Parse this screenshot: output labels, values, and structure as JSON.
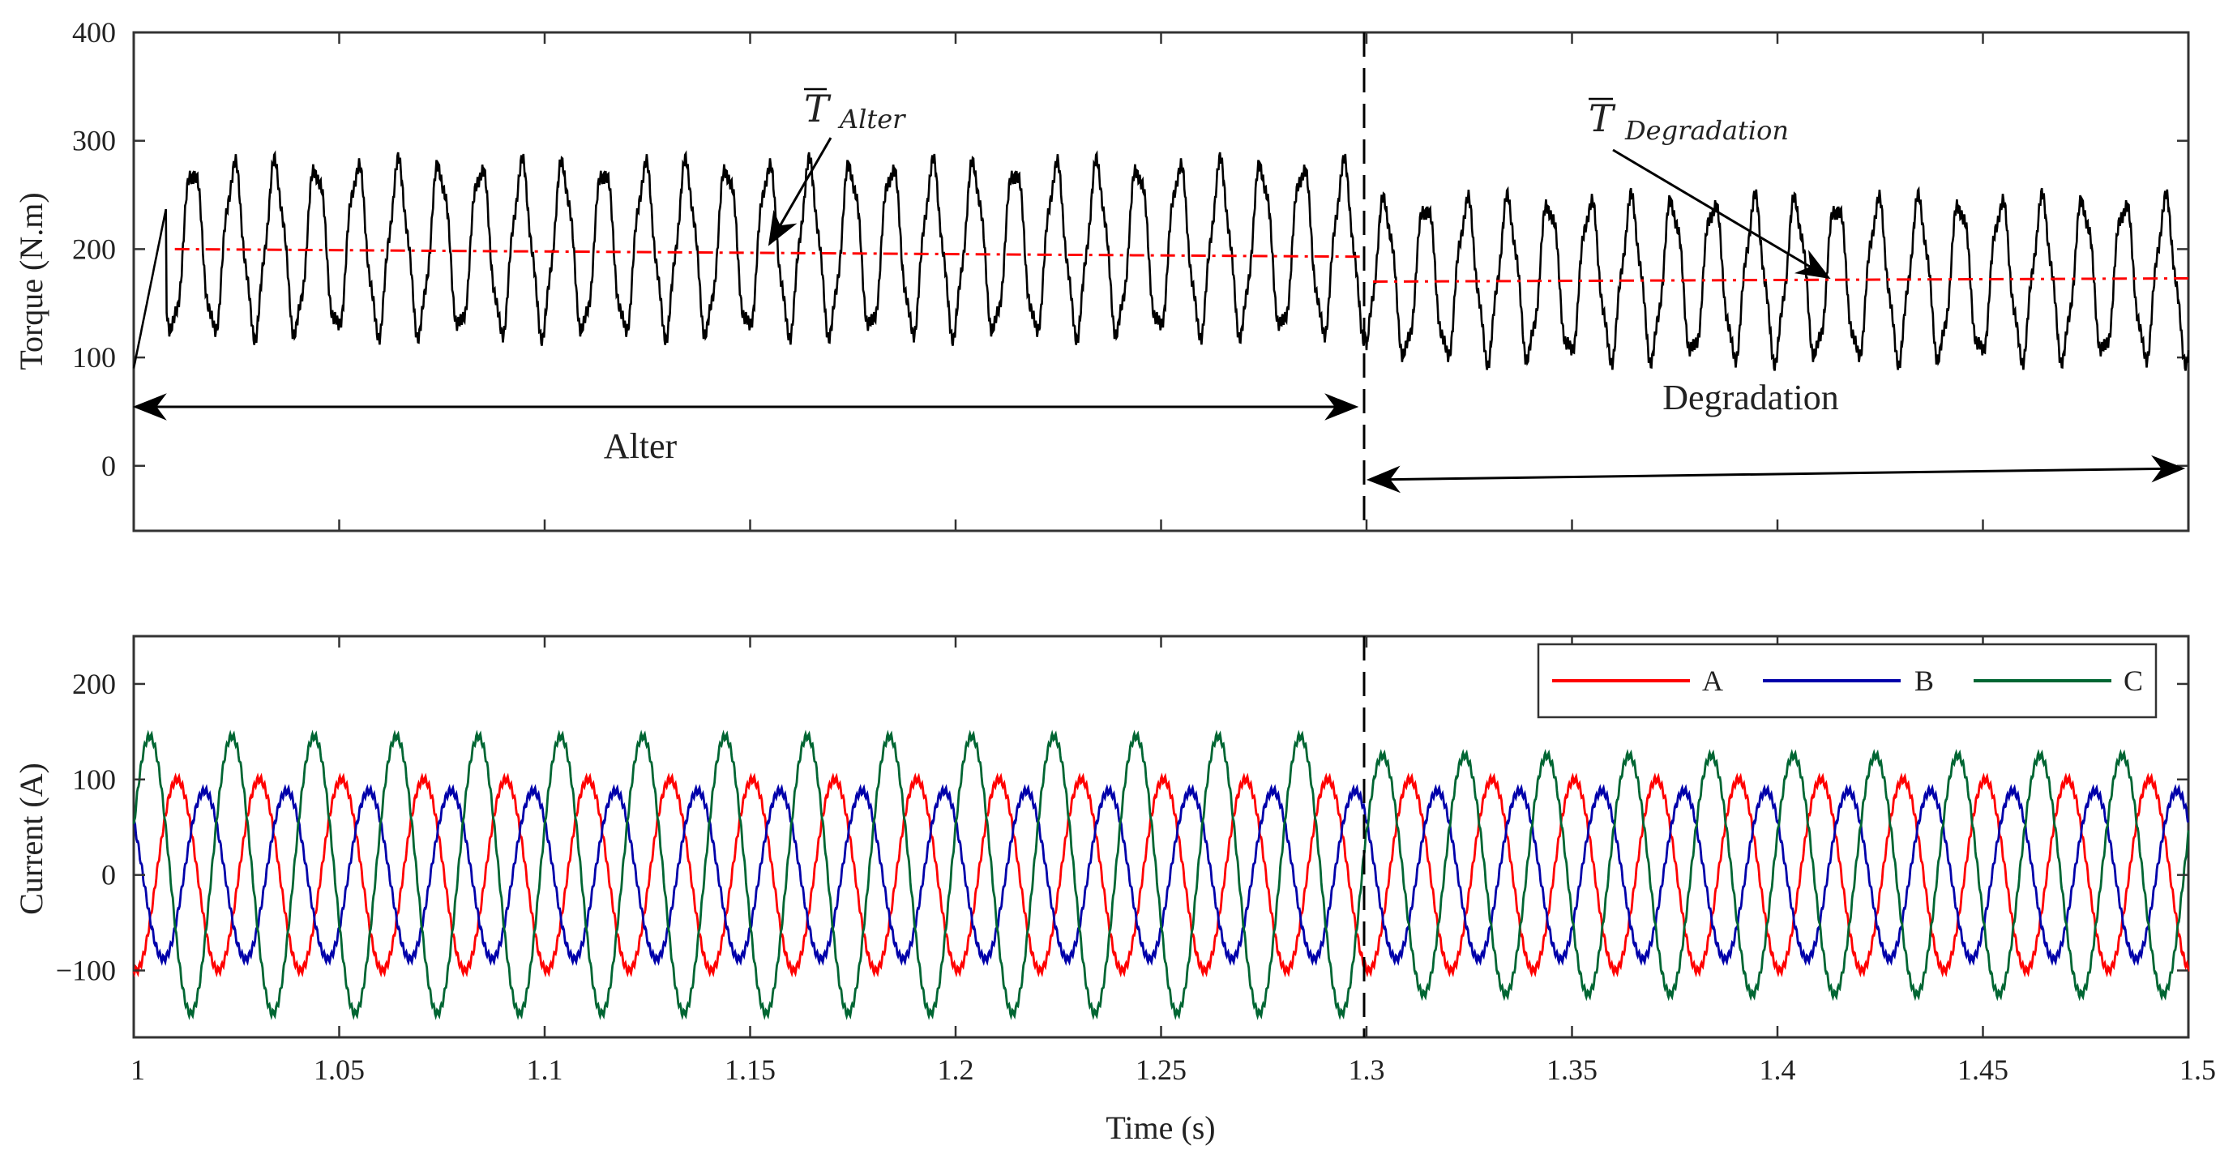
{
  "chart_data": [
    {
      "type": "line",
      "ylabel": "Torque (N.m)",
      "xlabel": "",
      "xlim": [
        1,
        1.5
      ],
      "ylim": [
        -60,
        400
      ],
      "x_ticks": [
        1,
        1.05,
        1.1,
        1.15,
        1.2,
        1.25,
        1.3,
        1.35,
        1.4,
        1.45,
        1.5
      ],
      "y_ticks": [
        0,
        100,
        200,
        300,
        400
      ],
      "grid": false,
      "series": [
        {
          "color": "#000000",
          "style": "solid",
          "samples_per_second": 2000,
          "description_values": {
            "frequency_hz": 100,
            "segments": [
              {
                "x_start": 1.0,
                "x_end": 1.3,
                "mean": 200,
                "amplitude": 75
              },
              {
                "x_start": 1.3,
                "x_end": 1.5,
                "mean": 172,
                "amplitude": 70
              }
            ]
          }
        },
        {
          "color": "#ff0000",
          "style": "dashdot",
          "points": [
            [
              1.01,
              200
            ],
            [
              1.3,
              193
            ],
            [
              1.3,
              170
            ],
            [
              1.5,
              173
            ]
          ]
        }
      ],
      "annotations": [
        {
          "text_main": "T",
          "text_sub": "Alter",
          "arrow_to": [
            1.153,
            198
          ]
        },
        {
          "text_main": "T",
          "text_sub": "Degradation",
          "arrow_to": [
            1.413,
            175
          ]
        }
      ],
      "regions": [
        {
          "label": "Alter",
          "x_start": 1.0,
          "x_end": 1.298,
          "y": 55
        },
        {
          "label": "Degradation",
          "x_start": 1.3,
          "x_end": 1.5,
          "y": -10
        }
      ],
      "vline_x": 1.3
    },
    {
      "type": "line",
      "ylabel": "Current (A)",
      "xlabel": "Time (s)",
      "xlim": [
        1,
        1.5
      ],
      "ylim": [
        -170,
        250
      ],
      "x_ticks": [
        1,
        1.05,
        1.1,
        1.15,
        1.2,
        1.25,
        1.3,
        1.35,
        1.4,
        1.45,
        1.5
      ],
      "x_tick_labels": [
        "1",
        "1.05",
        "1.1",
        "1.15",
        "1.2",
        "1.25",
        "1.3",
        "1.35",
        "1.4",
        "1.45",
        "1.5"
      ],
      "y_ticks": [
        -100,
        0,
        100,
        200
      ],
      "y_tick_labels": [
        "−100",
        "0",
        "100",
        "200"
      ],
      "grid": false,
      "legend_position": "top-right",
      "frequency_hz": 50,
      "series": [
        {
          "name": "A",
          "color": "#ff0000",
          "amplitude": 100,
          "phase_deg": 260
        },
        {
          "name": "B",
          "color": "#0000aa",
          "amplitude": 88,
          "phase_deg": 140
        },
        {
          "name": "C",
          "color": "#006633",
          "amplitude": 145,
          "phase_deg": 20,
          "amplitude_after_1_3": 125
        }
      ],
      "vline_x": 1.3
    }
  ],
  "top": {
    "y_tick_labels": [
      "0",
      "100",
      "200",
      "300",
      "400"
    ]
  }
}
